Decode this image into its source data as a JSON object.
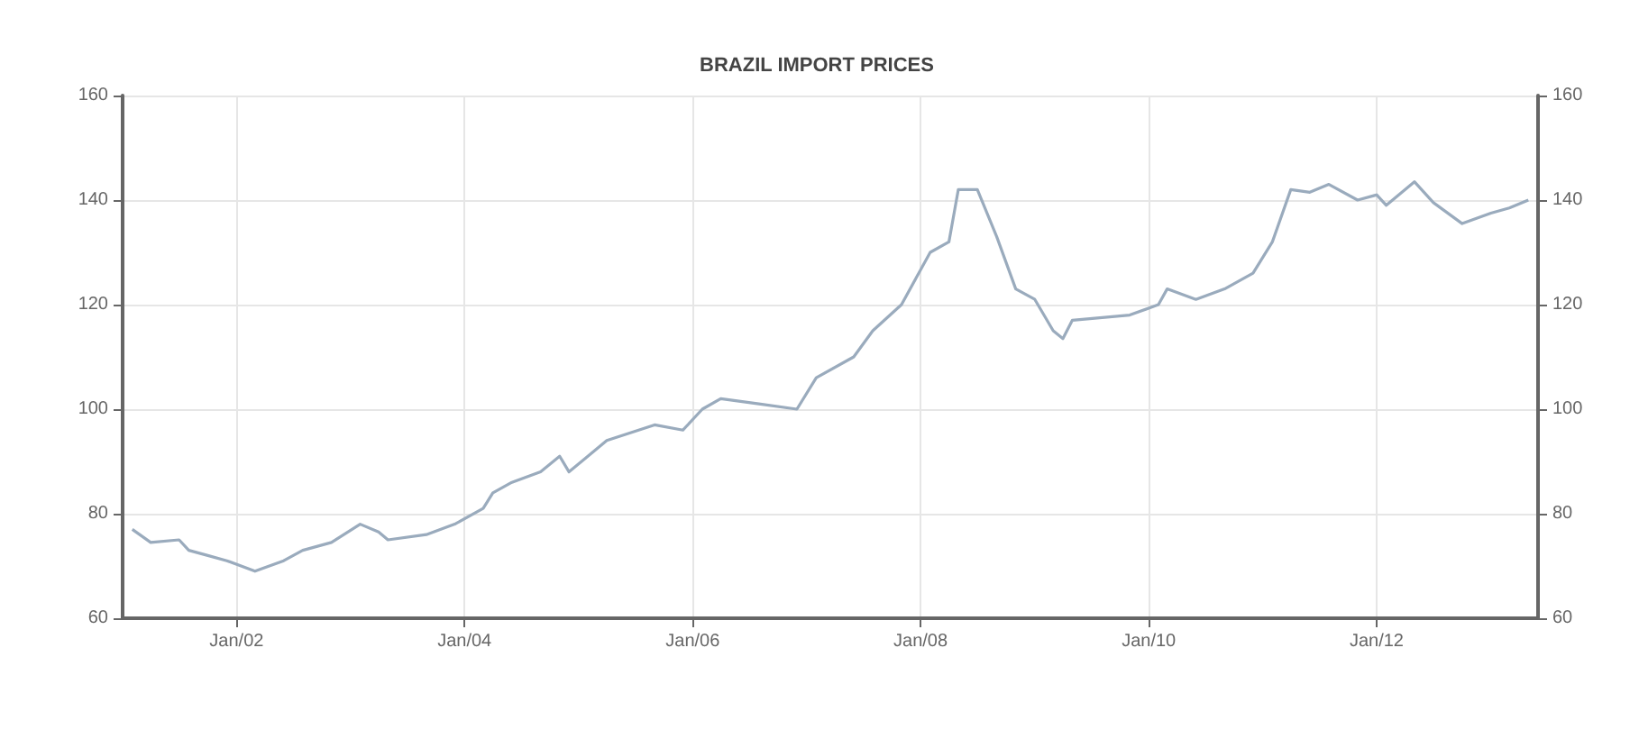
{
  "chart_data": {
    "type": "line",
    "title": "BRAZIL IMPORT PRICES",
    "x": [
      "2001-02",
      "2001-04",
      "2001-07",
      "2001-08",
      "2001-10",
      "2001-12",
      "2002-03",
      "2002-06",
      "2002-08",
      "2002-11",
      "2003-02",
      "2003-04",
      "2003-05",
      "2003-09",
      "2003-12",
      "2004-03",
      "2004-04",
      "2004-06",
      "2004-09",
      "2004-11",
      "2004-12",
      "2005-04",
      "2005-09",
      "2005-12",
      "2006-02",
      "2006-04",
      "2006-08",
      "2006-12",
      "2007-02",
      "2007-06",
      "2007-08",
      "2007-11",
      "2008-02",
      "2008-04",
      "2008-05",
      "2008-07",
      "2008-09",
      "2008-11",
      "2009-01",
      "2009-03",
      "2009-04",
      "2009-05",
      "2009-11",
      "2010-02",
      "2010-03",
      "2010-06",
      "2010-09",
      "2010-12",
      "2011-02",
      "2011-04",
      "2011-06",
      "2011-08",
      "2011-11",
      "2012-01",
      "2012-02",
      "2012-05",
      "2012-07",
      "2012-10",
      "2013-01",
      "2013-03",
      "2013-05"
    ],
    "series": [
      {
        "color": "#9aabbd",
        "values": [
          77,
          74.5,
          75,
          73,
          72,
          71,
          69,
          71,
          73,
          74.5,
          78,
          76.5,
          75,
          76,
          78,
          81,
          84,
          86,
          88,
          91,
          88,
          94,
          97,
          96,
          100,
          102,
          101,
          100,
          106,
          110,
          115,
          120,
          130,
          132,
          142,
          142,
          133,
          123,
          121,
          115,
          113.5,
          117,
          118,
          120,
          123,
          121,
          123,
          126,
          132,
          142,
          141.5,
          143,
          140,
          141,
          139,
          143.5,
          139.5,
          135.5,
          137.5,
          138.5,
          140
        ]
      }
    ],
    "xlim": [
      "2001-01",
      "2013-06"
    ],
    "xticks": [
      {
        "value": "2002-01",
        "label": "Jan/02"
      },
      {
        "value": "2004-01",
        "label": "Jan/04"
      },
      {
        "value": "2006-01",
        "label": "Jan/06"
      },
      {
        "value": "2008-01",
        "label": "Jan/08"
      },
      {
        "value": "2010-01",
        "label": "Jan/10"
      },
      {
        "value": "2012-01",
        "label": "Jan/12"
      }
    ],
    "ylim": [
      60,
      160
    ],
    "yticks": [
      60,
      80,
      100,
      120,
      140,
      160
    ],
    "y2lim": [
      60,
      160
    ],
    "y2ticks": [
      60,
      80,
      100,
      120,
      140,
      160
    ],
    "grid": true,
    "marker": "none",
    "line_style": "solid"
  }
}
